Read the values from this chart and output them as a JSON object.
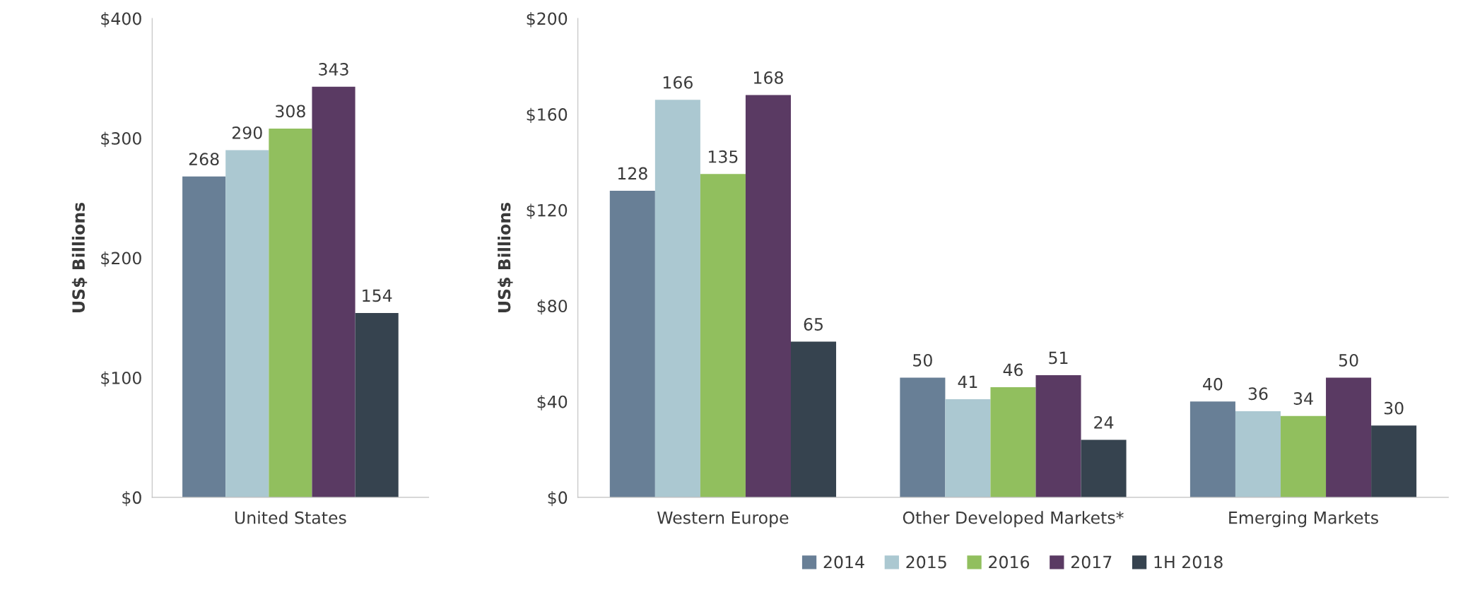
{
  "chart_data": [
    {
      "type": "bar",
      "categories": [
        null,
        null,
        null,
        null,
        null
      ],
      "xlabel": "United States",
      "ylabel": "US$ Billions",
      "ylim": [
        0,
        400
      ],
      "yticks": [
        {
          "value": 0,
          "label": "$0"
        },
        {
          "value": 100,
          "label": "$100"
        },
        {
          "value": 200,
          "label": "$200"
        },
        {
          "value": 300,
          "label": "$300"
        },
        {
          "value": 400,
          "label": "$400"
        }
      ],
      "data_labels": true,
      "grid": false,
      "legend": false,
      "values": [
        268,
        290,
        308,
        343,
        154
      ],
      "colors": [
        "#687f96",
        "#abc8d1",
        "#91bf5e",
        "#5a3a63",
        "#36434f"
      ]
    },
    {
      "type": "bar",
      "categories": [
        "Western Europe",
        "Other Developed Markets*",
        "Emerging Markets"
      ],
      "ylabel": "US$ Billions",
      "ylim": [
        0,
        200
      ],
      "yticks": [
        {
          "value": 0,
          "label": "$0"
        },
        {
          "value": 40,
          "label": "$40"
        },
        {
          "value": 80,
          "label": "$80"
        },
        {
          "value": 120,
          "label": "$120"
        },
        {
          "value": 160,
          "label": "$160"
        },
        {
          "value": 200,
          "label": "$200"
        }
      ],
      "data_labels": true,
      "grid": false,
      "legend": "bottom",
      "series": [
        {
          "name": "2014",
          "color": "#687f96",
          "values": [
            128,
            50,
            40
          ]
        },
        {
          "name": "2015",
          "color": "#abc8d1",
          "values": [
            166,
            41,
            36
          ]
        },
        {
          "name": "2016",
          "color": "#91bf5e",
          "values": [
            135,
            46,
            34
          ]
        },
        {
          "name": "2017",
          "color": "#5a3a63",
          "values": [
            168,
            51,
            50
          ]
        },
        {
          "name": "1H 2018",
          "color": "#36434f",
          "values": [
            65,
            24,
            30
          ]
        }
      ]
    }
  ]
}
